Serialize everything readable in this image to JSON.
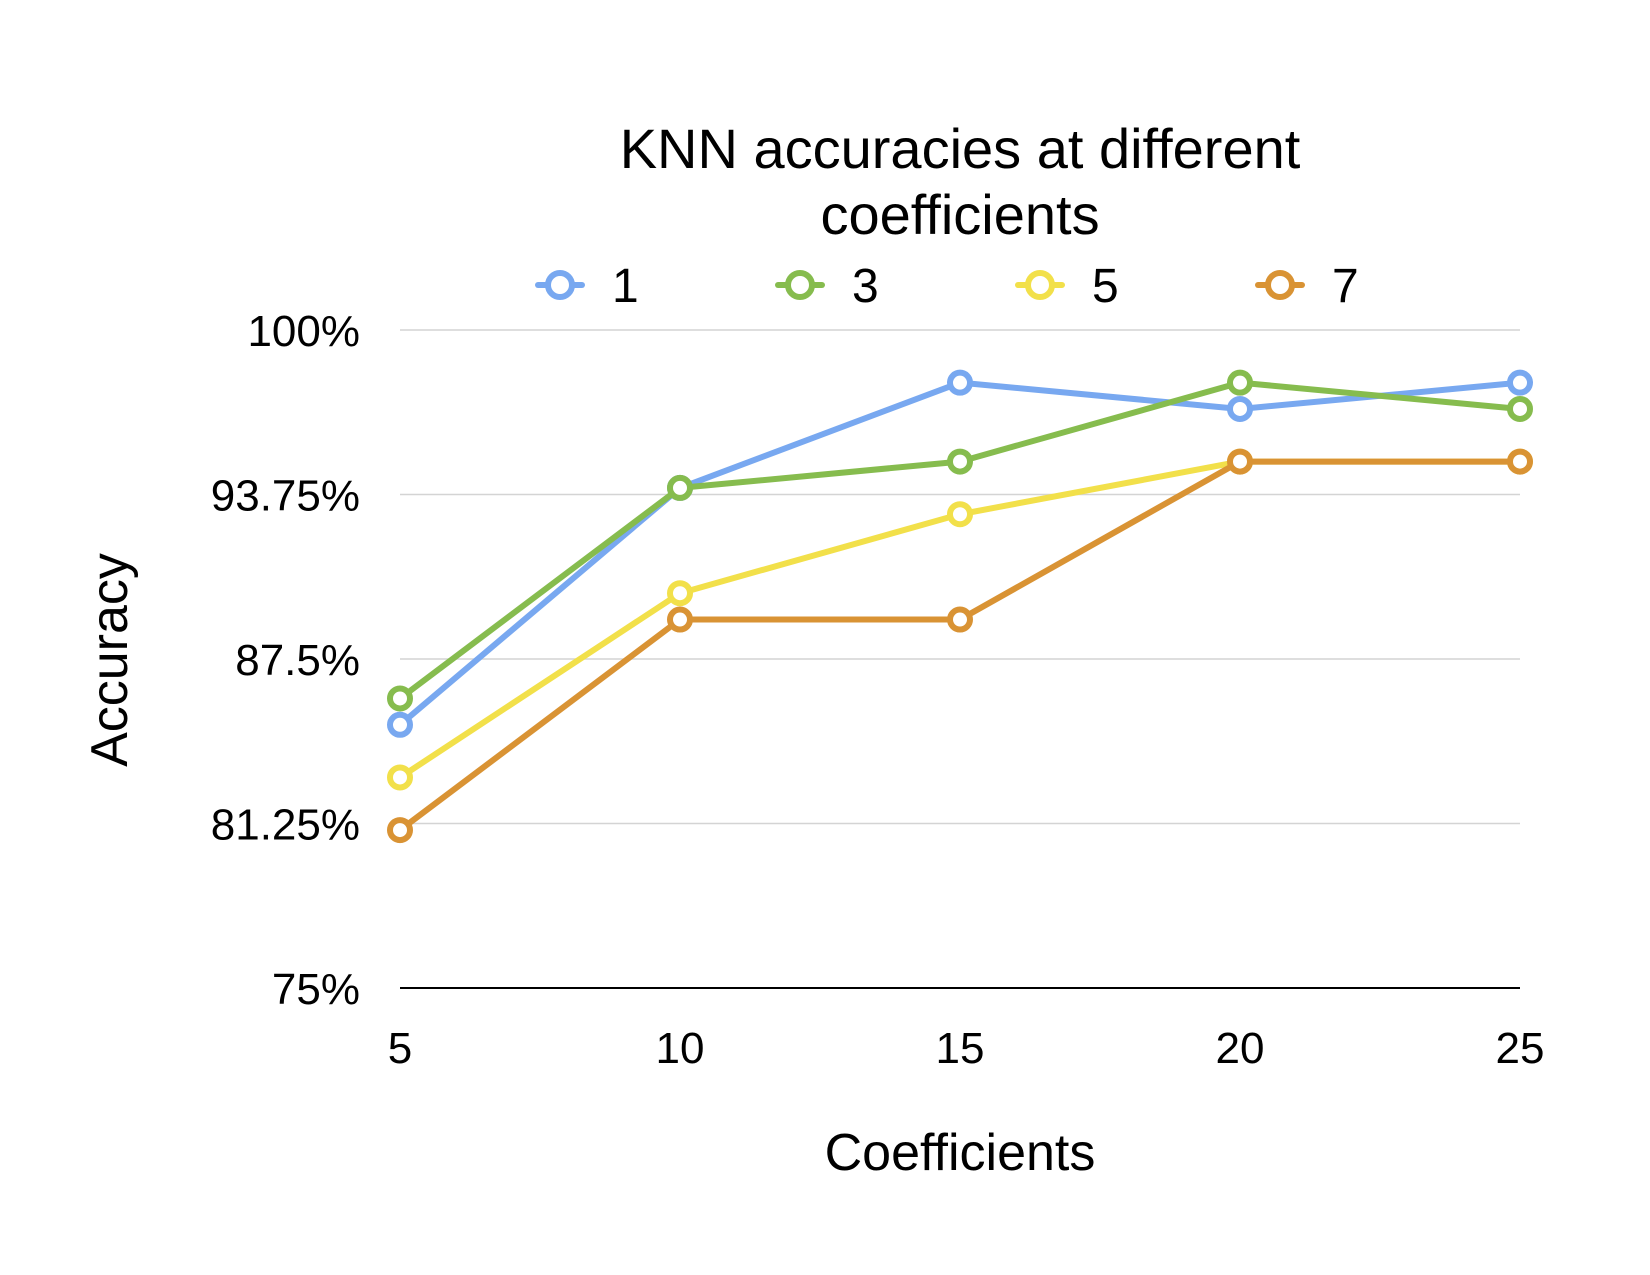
{
  "chart_data": {
    "type": "line",
    "title_lines": [
      "KNN accuracies at different",
      "coefficients"
    ],
    "xlabel": "Coefficients",
    "ylabel": "Accuracy",
    "x": [
      5,
      10,
      15,
      20,
      25
    ],
    "x_tick_labels": [
      "5",
      "10",
      "15",
      "20",
      "25"
    ],
    "ylim": [
      75,
      100
    ],
    "y_ticks": [
      75,
      81.25,
      87.5,
      93.75,
      100
    ],
    "y_tick_labels": [
      "75%",
      "81.25%",
      "87.5%",
      "93.75%",
      "100%"
    ],
    "grid": true,
    "legend_position": "top",
    "series": [
      {
        "name": "1",
        "color": "#78a8f0",
        "values": [
          85,
          94,
          98,
          97,
          98
        ]
      },
      {
        "name": "3",
        "color": "#86bc4e",
        "values": [
          86,
          94,
          95,
          98,
          97
        ]
      },
      {
        "name": "5",
        "color": "#f2e04a",
        "values": [
          83,
          90,
          93,
          95,
          95
        ]
      },
      {
        "name": "7",
        "color": "#d99334",
        "values": [
          81,
          89,
          89,
          95,
          95
        ]
      }
    ]
  }
}
